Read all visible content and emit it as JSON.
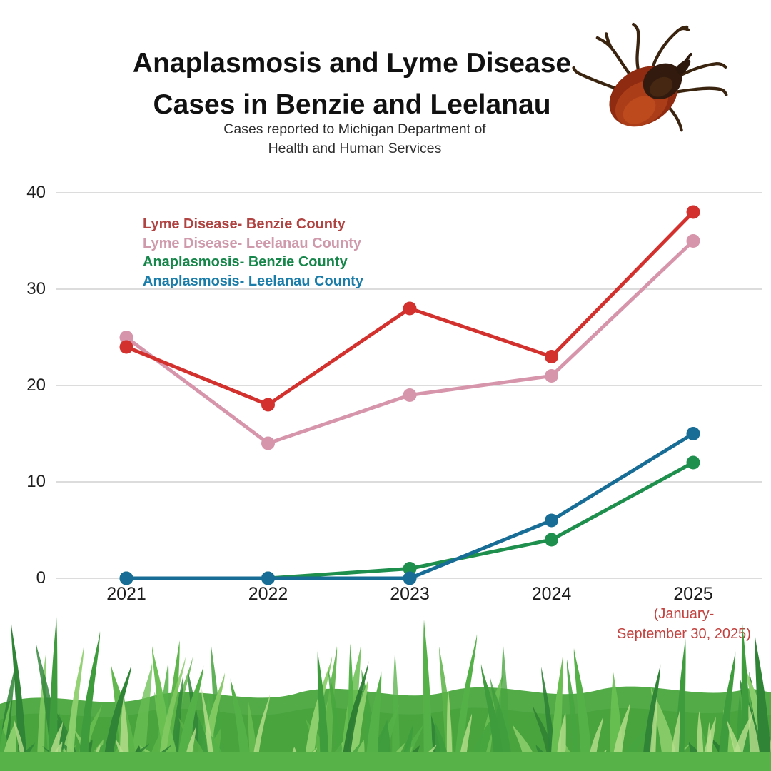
{
  "header": {
    "title": "Anaplasmosis and Lyme Disease Cases in Benzie and Leelanau",
    "subtitle": "Cases reported to Michigan Department of Health and Human Services"
  },
  "note": {
    "line1": "(January-",
    "line2": "September 30, 2025)",
    "color": "#c2423f"
  },
  "decorations": {
    "tick_image": "deer-tick-photo",
    "grass_image": "green-grass-photo"
  },
  "colors": {
    "background": "#ffffff",
    "gridline": "#dcdcdc",
    "axis_text": "#1f1f1f"
  },
  "chart_data": {
    "type": "line",
    "title": "Anaplasmosis and Lyme Disease Cases in Benzie and Leelanau",
    "subtitle": "Cases reported to Michigan Department of Health and Human Services",
    "x": [
      "2021",
      "2022",
      "2023",
      "2024",
      "2025"
    ],
    "series": [
      {
        "name": "Lyme Disease- Benzie County",
        "values": [
          24,
          18,
          28,
          23,
          38
        ],
        "color": "#d3312e",
        "legend_color": "#b04442"
      },
      {
        "name": "Lyme Disease- Leelanau County",
        "values": [
          25,
          14,
          19,
          21,
          35
        ],
        "color": "#d795ab",
        "legend_color": "#cf9aac"
      },
      {
        "name": "Anaplasmosis- Benzie County",
        "values": [
          0,
          0,
          1,
          4,
          12
        ],
        "color": "#1f8f4e",
        "legend_color": "#17864a"
      },
      {
        "name": "Anaplasmosis- Leelanau County",
        "values": [
          0,
          0,
          0,
          6,
          15
        ],
        "color": "#176d96",
        "legend_color": "#1a7ca8"
      }
    ],
    "ylim": [
      0,
      40
    ],
    "yticks": [
      0,
      10,
      20,
      30,
      40
    ],
    "grid": true,
    "legend_position": "inside-upper-left",
    "x_note": "(January- September 30, 2025)"
  }
}
